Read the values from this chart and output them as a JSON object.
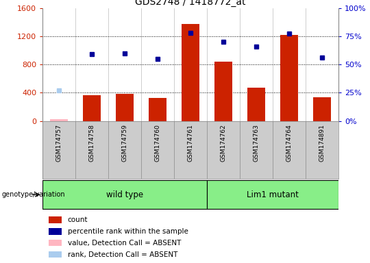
{
  "title": "GDS2748 / 1418772_at",
  "samples": [
    "GSM174757",
    "GSM174758",
    "GSM174759",
    "GSM174760",
    "GSM174761",
    "GSM174762",
    "GSM174763",
    "GSM174764",
    "GSM174891"
  ],
  "bar_values": [
    30,
    360,
    380,
    330,
    1370,
    840,
    470,
    1220,
    340
  ],
  "bar_absent": [
    true,
    false,
    false,
    false,
    false,
    false,
    false,
    false,
    false
  ],
  "perc_values": [
    null,
    59,
    60,
    55,
    78,
    70,
    66,
    77,
    56
  ],
  "perc_absent_val": 27,
  "dot_absent": [
    true,
    false,
    false,
    false,
    false,
    false,
    false,
    false,
    false
  ],
  "wild_type_count": 5,
  "lim1_count": 4,
  "ylim_left": [
    0,
    1600
  ],
  "ylim_right": [
    0,
    100
  ],
  "yticks_left": [
    0,
    400,
    800,
    1200,
    1600
  ],
  "yticks_right": [
    0,
    25,
    50,
    75,
    100
  ],
  "ytick_labels_left": [
    "0",
    "400",
    "800",
    "1200",
    "1600"
  ],
  "ytick_labels_right": [
    "0%",
    "25%",
    "50%",
    "75%",
    "100%"
  ],
  "hgrid_lines": [
    400,
    800,
    1200
  ],
  "bar_color": "#CC2200",
  "bar_color_absent": "#FFB6C1",
  "dot_color": "#000099",
  "dot_color_absent": "#AACCEE",
  "bg_color": "#FFFFFF",
  "plot_bg_color": "#FFFFFF",
  "sample_box_color": "#CCCCCC",
  "group_color": "#88EE88",
  "left_axis_color": "#CC2200",
  "right_axis_color": "#0000CC",
  "legend_items": [
    {
      "label": "count",
      "color": "#CC2200"
    },
    {
      "label": "percentile rank within the sample",
      "color": "#000099"
    },
    {
      "label": "value, Detection Call = ABSENT",
      "color": "#FFB6C1"
    },
    {
      "label": "rank, Detection Call = ABSENT",
      "color": "#AACCEE"
    }
  ],
  "group_label": "genotype/variation",
  "wild_type_label": "wild type",
  "lim1_label": "Lim1 mutant"
}
